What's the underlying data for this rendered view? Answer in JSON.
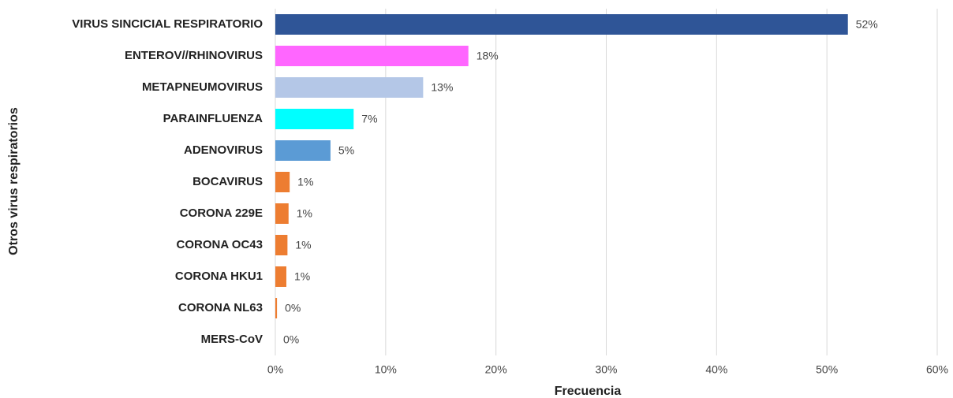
{
  "chart_data": {
    "type": "bar",
    "orientation": "horizontal",
    "x_label": "Frecuencia",
    "y_label": "Otros virus respiratorios",
    "categories": [
      "VIRUS SINCICIAL RESPIRATORIO",
      "ENTEROV//RHINOVIRUS",
      "METAPNEUMOVIRUS",
      "PARAINFLUENZA",
      "ADENOVIRUS",
      "BOCAVIRUS",
      "CORONA 229E",
      "CORONA OC43",
      "CORONA HKU1",
      "CORONA NL63",
      "MERS-CoV"
    ],
    "values": [
      51.9,
      17.5,
      13.4,
      7.1,
      5.0,
      1.3,
      1.2,
      1.1,
      1.0,
      0.15,
      0
    ],
    "value_labels": [
      "52%",
      "18%",
      "13%",
      "7%",
      "5%",
      "1%",
      "1%",
      "1%",
      "1%",
      "0%",
      "0%"
    ],
    "colors": [
      "#2f5597",
      "#ff66ff",
      "#b4c7e7",
      "#00ffff",
      "#5b9bd5",
      "#ed7d31",
      "#ed7d31",
      "#ed7d31",
      "#ed7d31",
      "#ed7d31",
      "#ed7d31"
    ],
    "xlim": [
      0,
      60
    ],
    "xticks": [
      {
        "value": 0,
        "label": "0%"
      },
      {
        "value": 10,
        "label": "10%"
      },
      {
        "value": 20,
        "label": "20%"
      },
      {
        "value": 30,
        "label": "30%"
      },
      {
        "value": 40,
        "label": "40%"
      },
      {
        "value": 50,
        "label": "50%"
      },
      {
        "value": 60,
        "label": "60%"
      }
    ],
    "grid": true
  }
}
